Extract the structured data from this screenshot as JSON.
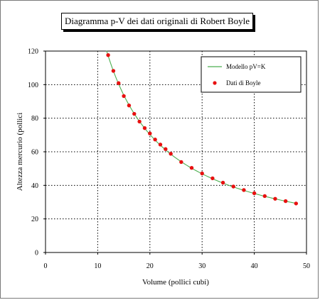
{
  "chart_data": {
    "type": "scatter",
    "title": "Diagramma p-V dei dati originali di Robert Boyle",
    "xlabel": "Volume (pollici cubi)",
    "ylabel": "Altezza mercurio (pollici",
    "xlim": [
      0,
      50
    ],
    "ylim": [
      0,
      120
    ],
    "xticks": [
      0,
      10,
      20,
      30,
      40,
      50
    ],
    "yticks": [
      0,
      20,
      40,
      60,
      80,
      100,
      120
    ],
    "grid": true,
    "legend_position": "top-right",
    "series": [
      {
        "name": "Modello pV=K",
        "kind": "line",
        "color": "#4caf50",
        "K": 1406,
        "x_range": [
          11.7,
          48
        ]
      },
      {
        "name": "Dati di Boyle",
        "kind": "scatter",
        "color": "#e81010",
        "x": [
          12,
          13,
          14,
          15,
          16,
          17,
          18,
          19,
          20,
          21,
          22,
          23,
          24,
          26,
          28,
          30,
          32,
          34,
          36,
          38,
          40,
          42,
          44,
          46,
          48
        ],
        "y": [
          117.6,
          108.2,
          100.9,
          93.2,
          87.6,
          82.6,
          78.0,
          74.1,
          70.9,
          67.3,
          64.3,
          61.6,
          58.8,
          53.9,
          50.4,
          47.1,
          44.2,
          41.6,
          39.3,
          37.2,
          35.3,
          33.6,
          32.0,
          30.6,
          29.2
        ]
      }
    ]
  }
}
